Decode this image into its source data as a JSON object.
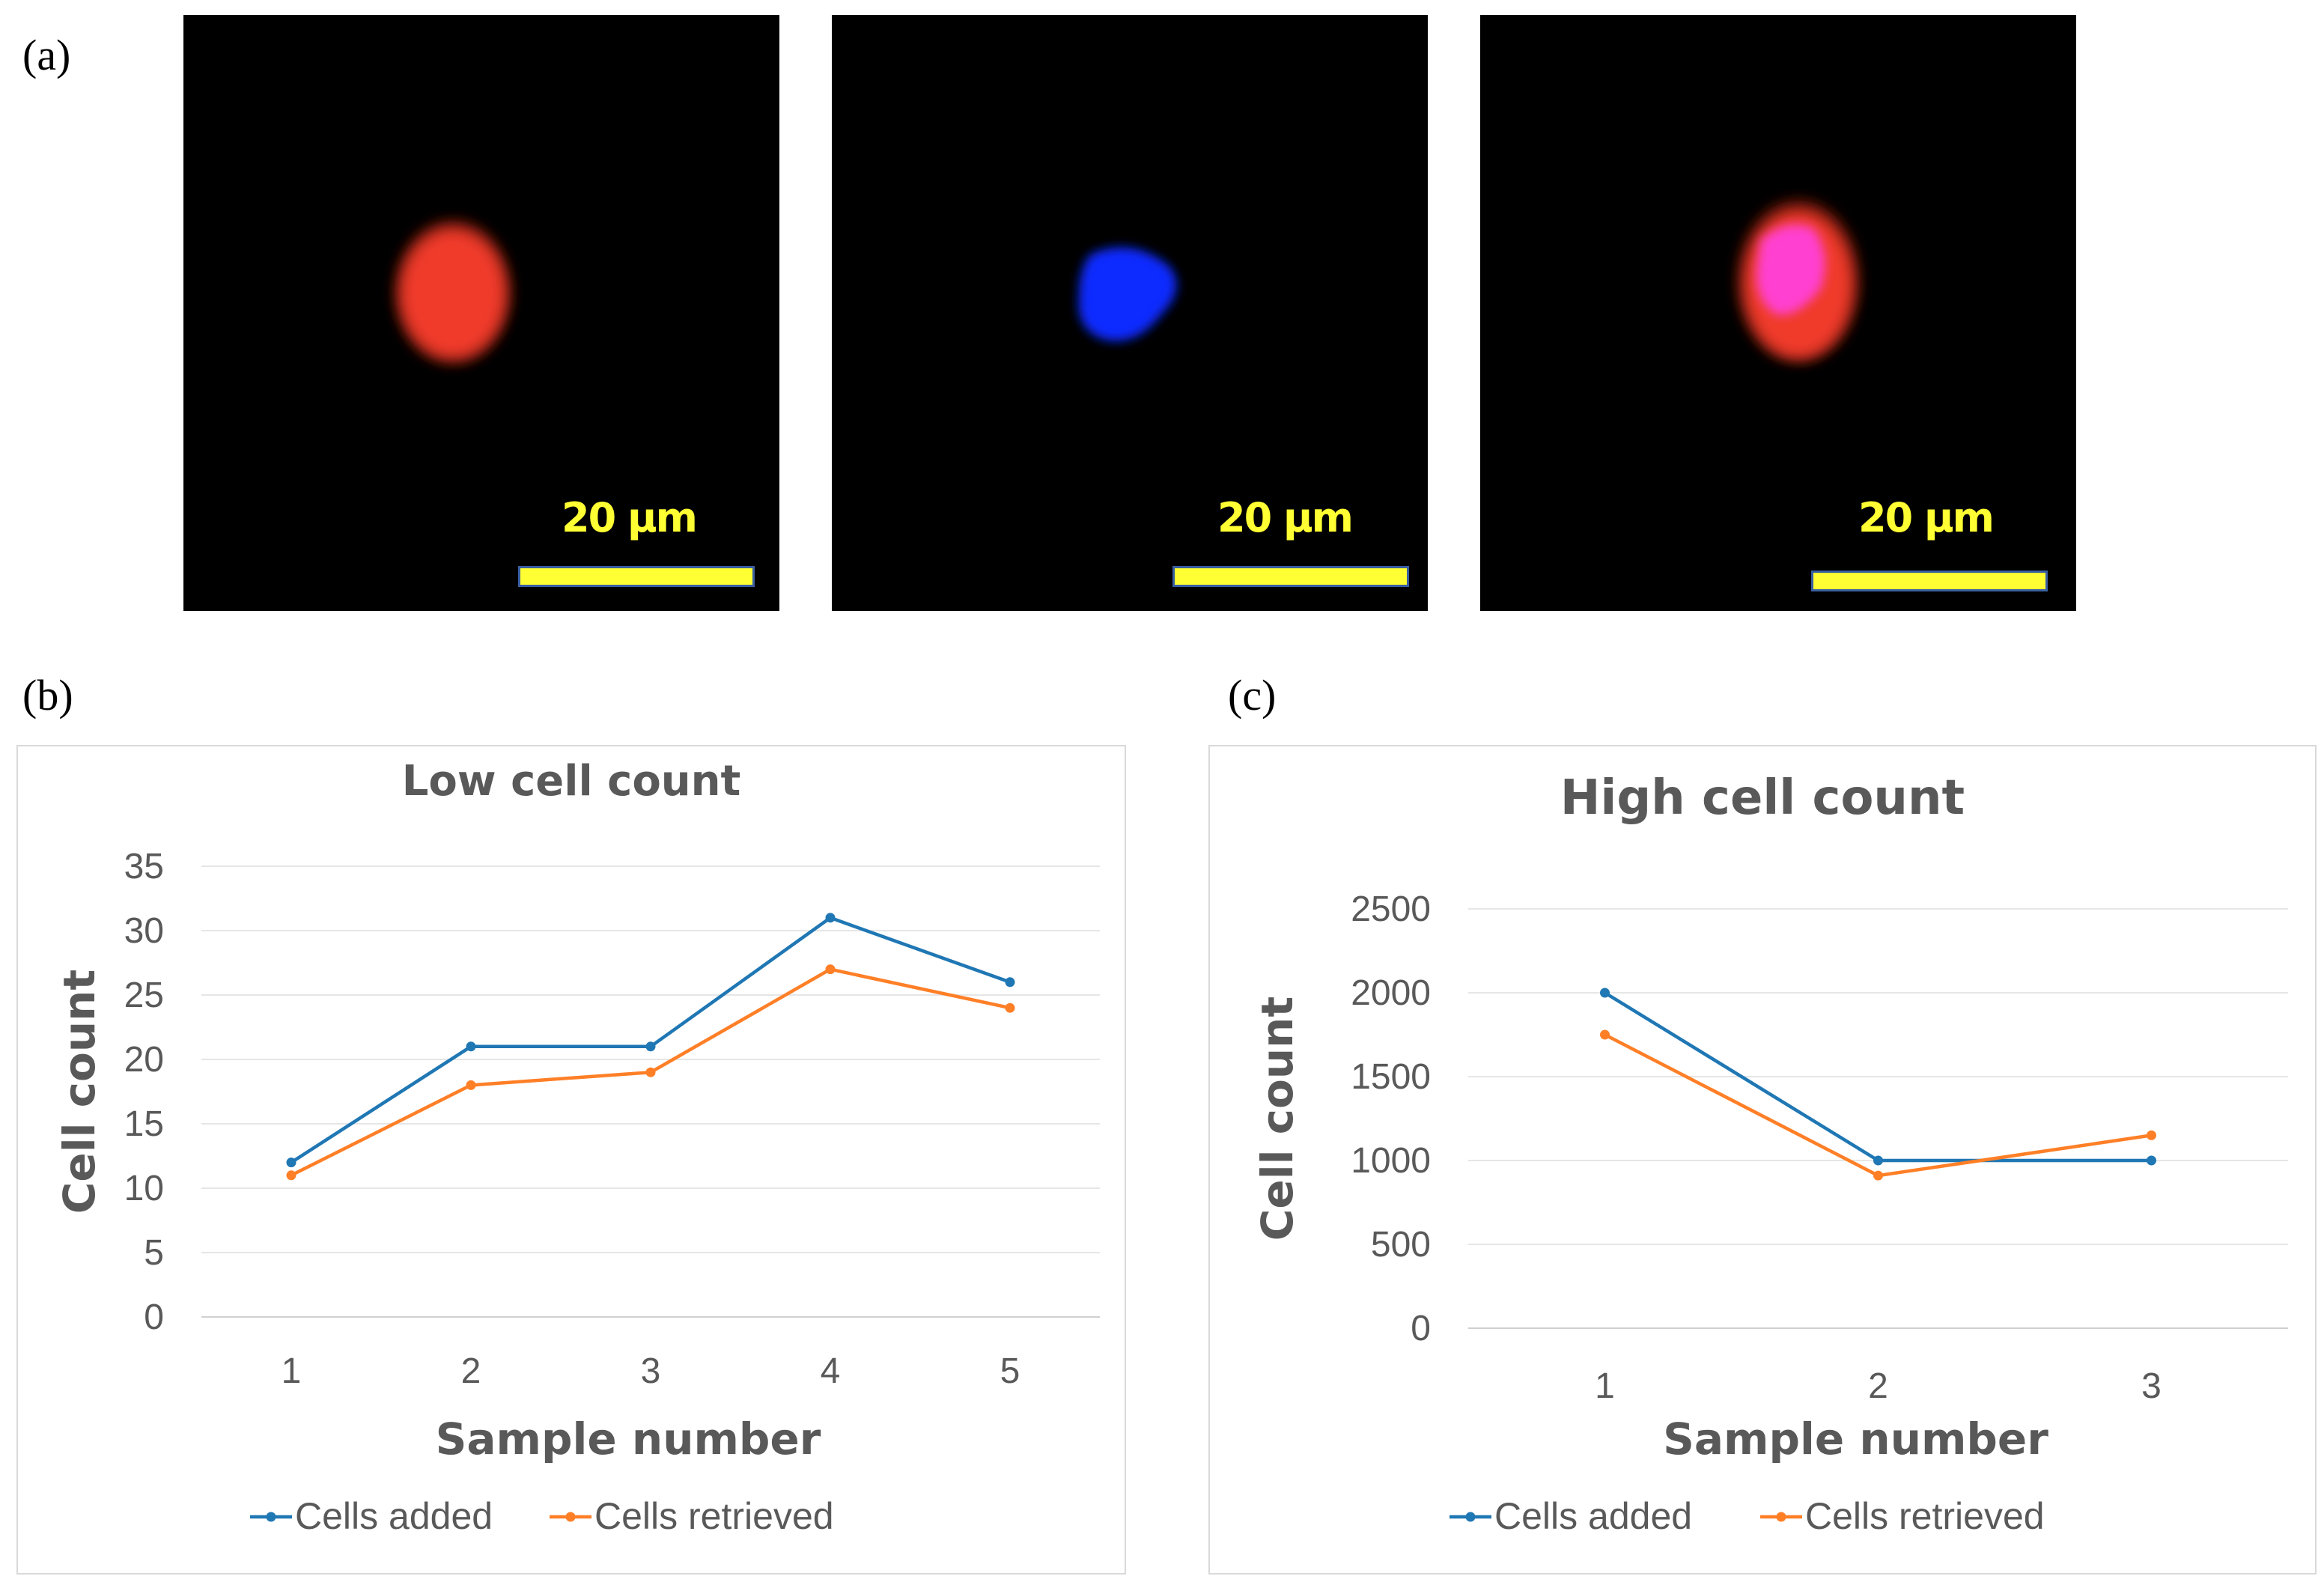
{
  "panels": {
    "a": "(a)",
    "b": "(b)",
    "c": "(c)"
  },
  "micrographs": [
    {
      "scale_label": "20 µm",
      "cell_color": "#f03a2a"
    },
    {
      "scale_label": "20 µm",
      "cell_color": "#0a2cff"
    },
    {
      "scale_label": "20 µm",
      "cell_color": "#f03a2a",
      "overlay_color": "#ff40d0"
    }
  ],
  "colors": {
    "cells_added": "#1f77b4",
    "cells_retrieved": "#ff7f27",
    "grid": "#e6e6e6",
    "text": "#595959"
  },
  "chart_data": [
    {
      "type": "line",
      "title": "Low cell count",
      "xlabel": "Sample number",
      "ylabel": "Cell count",
      "categories": [
        "1",
        "2",
        "3",
        "4",
        "5"
      ],
      "yticks": [
        "0",
        "5",
        "10",
        "15",
        "20",
        "25",
        "30",
        "35"
      ],
      "ylim": [
        0,
        35
      ],
      "grid": true,
      "legend_position": "bottom",
      "series": [
        {
          "name": "Cells added",
          "values": [
            12,
            21,
            21,
            31,
            26
          ]
        },
        {
          "name": "Cells retrieved",
          "values": [
            11,
            18,
            19,
            27,
            24
          ]
        }
      ]
    },
    {
      "type": "line",
      "title": "High cell count",
      "xlabel": "Sample number",
      "ylabel": "Cell count",
      "categories": [
        "1",
        "2",
        "3"
      ],
      "yticks": [
        "0",
        "500",
        "1000",
        "1500",
        "2000",
        "2500"
      ],
      "ylim": [
        0,
        2500
      ],
      "grid": true,
      "legend_position": "bottom",
      "series": [
        {
          "name": "Cells added",
          "values": [
            2000,
            1000,
            1000
          ]
        },
        {
          "name": "Cells retrieved",
          "values": [
            1750,
            910,
            1150
          ]
        }
      ]
    }
  ]
}
